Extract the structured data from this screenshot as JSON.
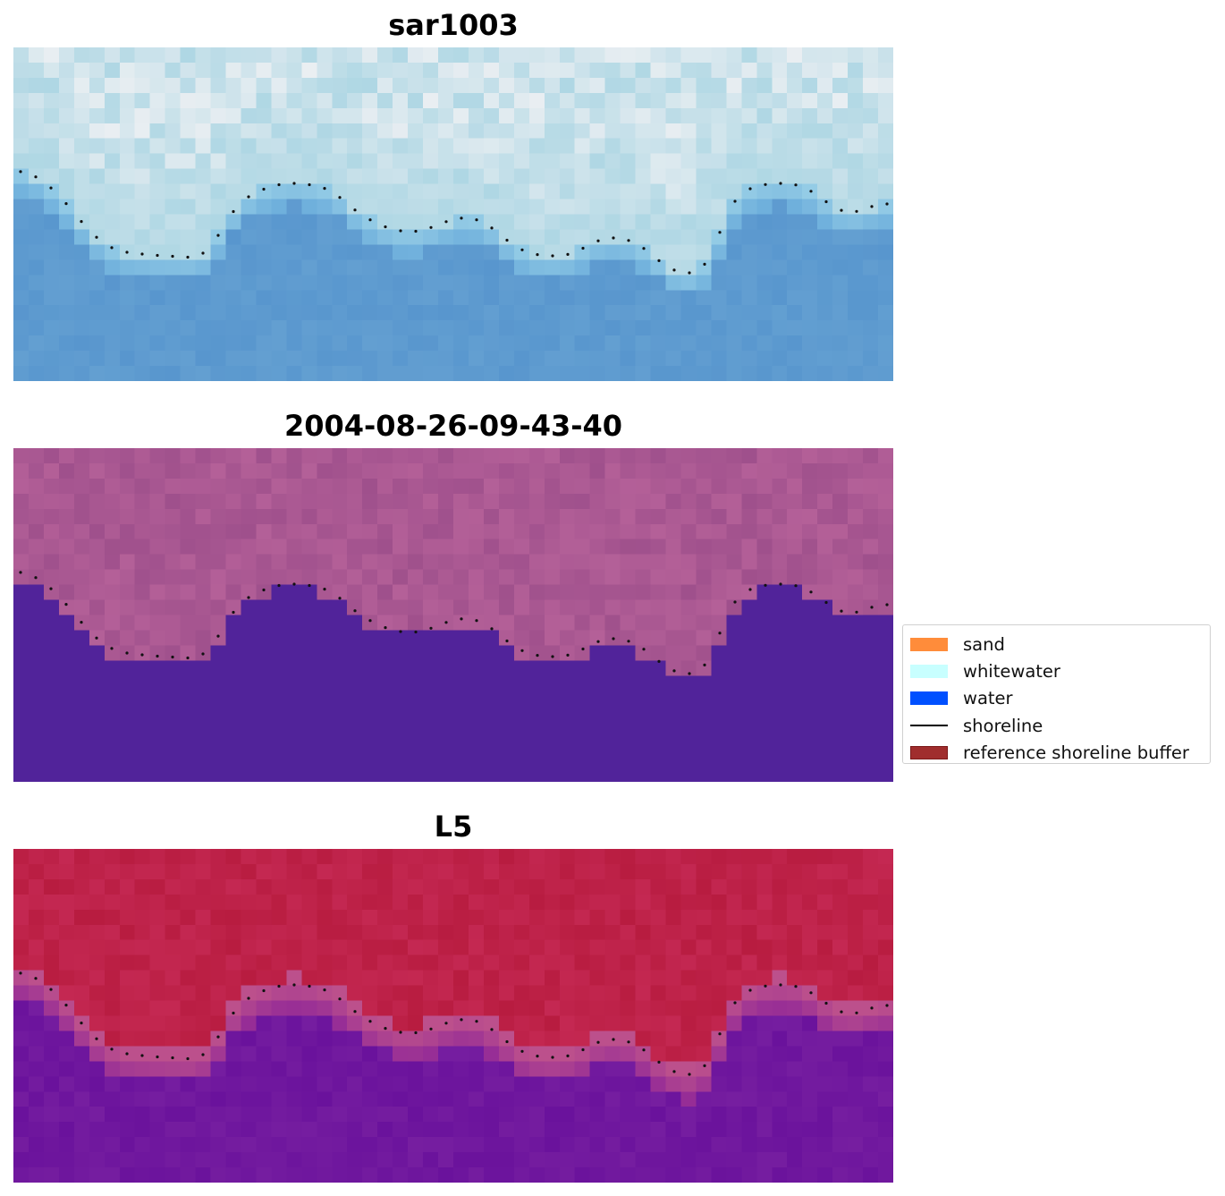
{
  "panels": [
    {
      "title": "sar1003",
      "style": "rgb"
    },
    {
      "title": "2004-08-26-09-43-40",
      "style": "classified"
    },
    {
      "title": "L5",
      "style": "index"
    }
  ],
  "legend": {
    "items": [
      {
        "label": "sand",
        "color": "#ff8c3a",
        "kind": "patch"
      },
      {
        "label": "whitewater",
        "color": "#c8ffff",
        "kind": "patch"
      },
      {
        "label": "water",
        "color": "#0050ff",
        "kind": "patch"
      },
      {
        "label": "shoreline",
        "color": "#000000",
        "kind": "line"
      },
      {
        "label": "reference shoreline buffer",
        "color": "#a02d2d",
        "edge": "#7a1818",
        "kind": "patch"
      }
    ]
  },
  "colors": {
    "water_class": "#51239a",
    "buffer_pink": "#a3548f",
    "index_high": "#bf1d44",
    "index_low": "#6a0f9b"
  }
}
